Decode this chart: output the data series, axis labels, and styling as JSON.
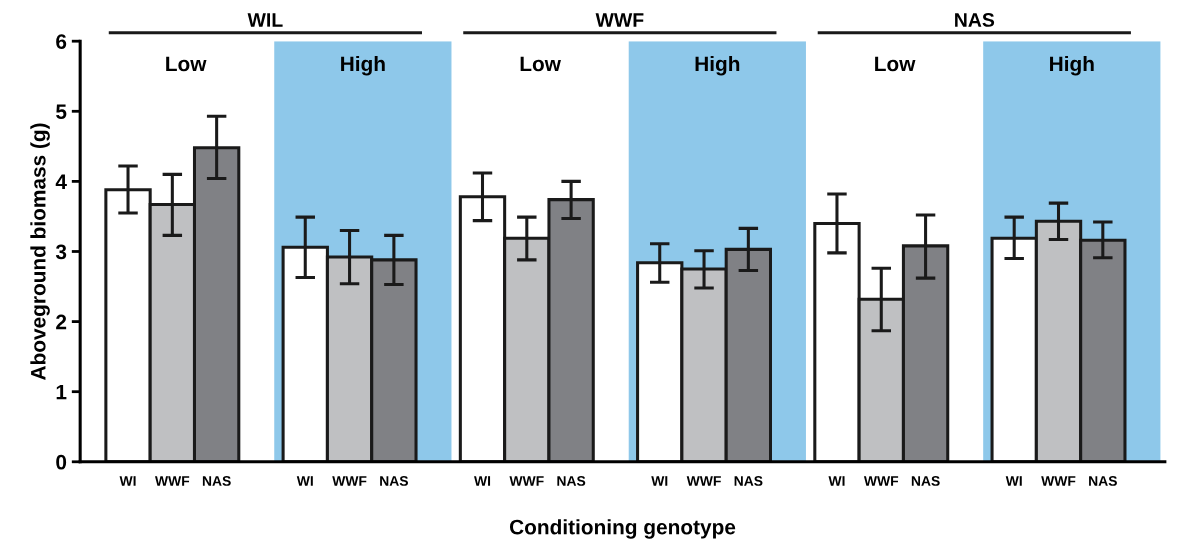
{
  "chart_data": {
    "type": "bar",
    "xlabel": "Conditioning genotype",
    "ylabel": "Aboveground biomass (g)",
    "categories": [
      "WI",
      "WWF",
      "NAS",
      null,
      "WI",
      "WWF",
      "NAS",
      null,
      "WI",
      "WWF",
      "NAS",
      null,
      "WI",
      "WWF",
      "NAS",
      null,
      "WI",
      "WWF",
      "NAS",
      null,
      "WI",
      "WWF",
      "NAS"
    ],
    "values": [
      3.88,
      3.67,
      4.48,
      null,
      3.06,
      2.92,
      2.88,
      null,
      3.78,
      3.19,
      3.74,
      null,
      2.84,
      2.75,
      3.03,
      null,
      3.4,
      2.32,
      3.08,
      null,
      3.19,
      3.43,
      3.16
    ],
    "errors": [
      [
        3.55,
        4.22
      ],
      [
        3.23,
        4.1
      ],
      [
        4.04,
        4.93
      ],
      null,
      [
        2.63,
        3.49
      ],
      [
        2.54,
        3.3
      ],
      [
        2.53,
        3.23
      ],
      null,
      [
        3.44,
        4.12
      ],
      [
        2.88,
        3.49
      ],
      [
        3.47,
        4.0
      ],
      null,
      [
        2.56,
        3.11
      ],
      [
        2.48,
        3.01
      ],
      [
        2.73,
        3.33
      ],
      null,
      [
        2.98,
        3.82
      ],
      [
        1.87,
        2.76
      ],
      [
        2.62,
        3.52
      ],
      null,
      [
        2.9,
        3.49
      ],
      [
        3.17,
        3.69
      ],
      [
        2.91,
        3.42
      ]
    ],
    "colors": [
      "#ffffff",
      "#bfc0c2",
      "#808185",
      null,
      "#ffffff",
      "#bfc0c2",
      "#808185",
      null,
      "#ffffff",
      "#bfc0c2",
      "#808185",
      null,
      "#ffffff",
      "#bfc0c2",
      "#808185",
      null,
      "#ffffff",
      "#bfc0c2",
      "#808185",
      null,
      "#ffffff",
      "#bfc0c2",
      "#808185"
    ],
    "ylim": [
      0,
      6
    ],
    "yticks": [
      0,
      1,
      2,
      3,
      4,
      5,
      6
    ],
    "annotations": [
      "WIL",
      "WWF",
      "NAS",
      "Low",
      "High",
      "Low",
      "High",
      "Low",
      "High"
    ],
    "grid": false
  }
}
